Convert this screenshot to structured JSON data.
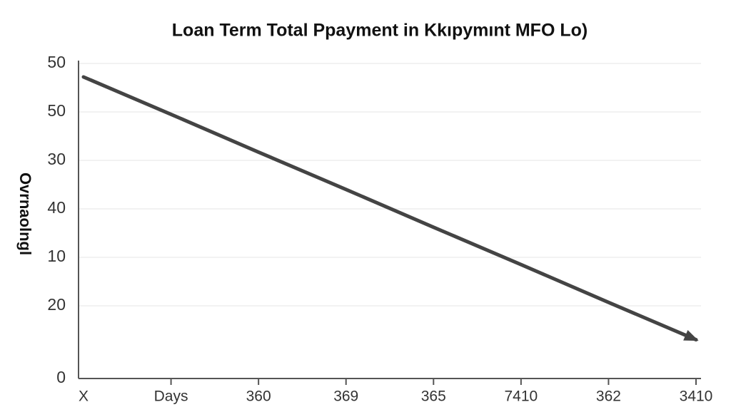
{
  "chart_data": {
    "type": "line",
    "title": "Loan Term Total Ppayment in Kkıpymınt MFO Lo)",
    "y_label": "Ovrnaolngl",
    "categories": [
      "X",
      "Days",
      "360",
      "369",
      "365",
      "7410",
      "362",
      "3410"
    ],
    "series": [
      {
        "color": "#444444",
        "values": [
          6.22,
          5.45,
          4.67,
          3.9,
          3.12,
          2.35,
          1.57,
          0.8
        ]
      }
    ],
    "ylim": [
      0,
      6.5
    ],
    "yticks": [
      0,
      {
        "value": 1.5,
        "label": "20"
      },
      {
        "value": 2.5,
        "label": "10"
      },
      {
        "value": 3.5,
        "label": "40"
      },
      {
        "value": 4.5,
        "label": "30"
      },
      {
        "value": 5.5,
        "label": "50"
      },
      {
        "value": 6.5,
        "label": "50"
      }
    ],
    "grid": true
  }
}
